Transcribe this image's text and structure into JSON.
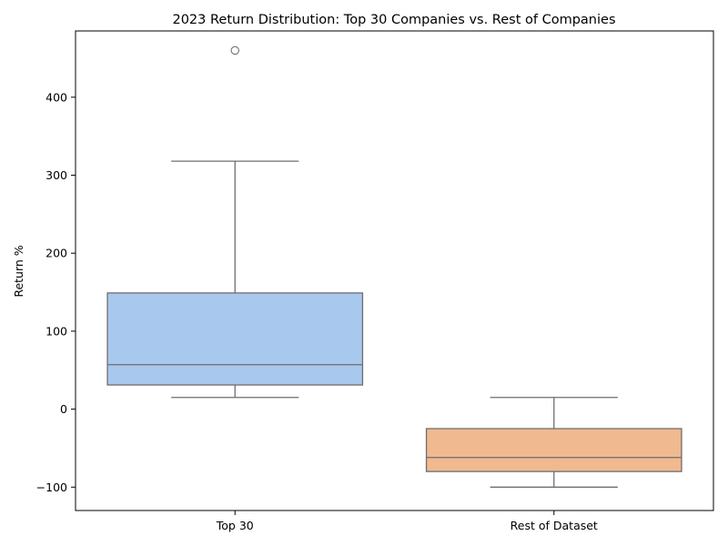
{
  "chart_data": {
    "type": "box",
    "title": "2023 Return Distribution: Top 30 Companies vs. Rest of Companies",
    "xlabel": "",
    "ylabel": "Return %",
    "categories": [
      "Top 30",
      "Rest of Dataset"
    ],
    "ylim": [
      -130,
      485
    ],
    "yticks": [
      -100,
      0,
      100,
      200,
      300,
      400
    ],
    "ytick_labels": [
      "−100",
      "0",
      "100",
      "200",
      "300",
      "400"
    ],
    "grid": false,
    "boxes": [
      {
        "name": "Top 30",
        "whisker_low": 15,
        "q1": 31,
        "median": 57,
        "q3": 149,
        "whisker_high": 318,
        "outliers": [
          460
        ],
        "color": "#a9c8ee"
      },
      {
        "name": "Rest of Dataset",
        "whisker_low": -100,
        "q1": -80,
        "median": -62,
        "q3": -25,
        "whisker_high": 15,
        "outliers": [],
        "color": "#f1b990"
      }
    ],
    "line_color": "#6e6e6e"
  }
}
